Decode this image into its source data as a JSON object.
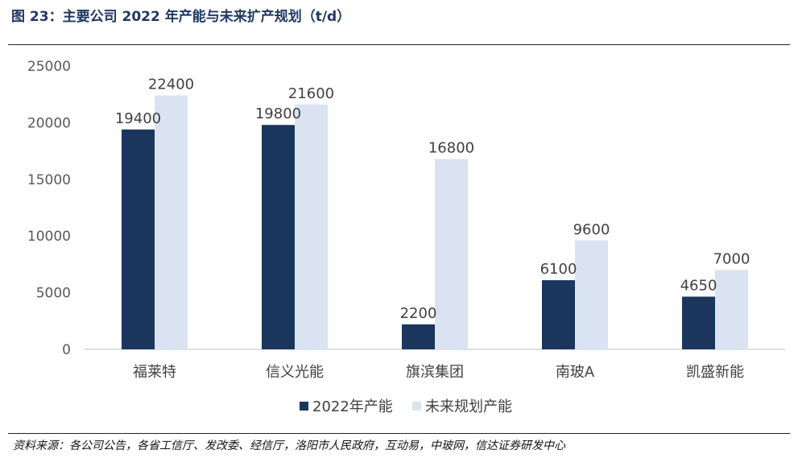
{
  "figure": {
    "title": "图 23：主要公司 2022 年产能与未来扩产规划（t/d）",
    "source": "资料来源：各公司公告，各省工信厅、发改委、经信厅，洛阳市人民政府，互动易，中玻网，信达证券研发中心"
  },
  "chart_data": {
    "type": "bar",
    "title": "",
    "xlabel": "",
    "ylabel": "",
    "categories": [
      "福莱特",
      "信义光能",
      "旗滨集团",
      "南玻A",
      "凯盛新能"
    ],
    "series": [
      {
        "name": "2022年产能",
        "values": [
          19400,
          19800,
          2200,
          6100,
          4650
        ],
        "color": "#1b365d"
      },
      {
        "name": "未来规划产能",
        "values": [
          22400,
          21600,
          16800,
          9600,
          7000
        ],
        "color": "#dae3f1"
      }
    ],
    "ylim": [
      0,
      25000
    ],
    "yticks": [
      0,
      5000,
      10000,
      15000,
      20000,
      25000
    ],
    "grid": false,
    "legend_position": "bottom",
    "data_labels": true
  }
}
